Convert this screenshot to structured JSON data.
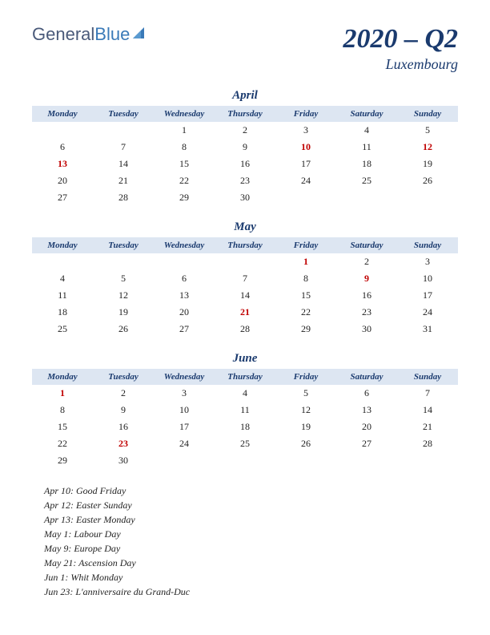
{
  "logo": {
    "part1": "General",
    "part2": "Blue"
  },
  "header": {
    "title": "2020 – Q2",
    "subtitle": "Luxembourg"
  },
  "day_headers": [
    "Monday",
    "Tuesday",
    "Wednesday",
    "Thursday",
    "Friday",
    "Saturday",
    "Sunday"
  ],
  "months": [
    {
      "name": "April",
      "weeks": [
        [
          null,
          null,
          {
            "d": 1
          },
          {
            "d": 2
          },
          {
            "d": 3
          },
          {
            "d": 4
          },
          {
            "d": 5
          }
        ],
        [
          {
            "d": 6
          },
          {
            "d": 7
          },
          {
            "d": 8
          },
          {
            "d": 9
          },
          {
            "d": 10,
            "h": true
          },
          {
            "d": 11
          },
          {
            "d": 12,
            "h": true
          }
        ],
        [
          {
            "d": 13,
            "h": true
          },
          {
            "d": 14
          },
          {
            "d": 15
          },
          {
            "d": 16
          },
          {
            "d": 17
          },
          {
            "d": 18
          },
          {
            "d": 19
          }
        ],
        [
          {
            "d": 20
          },
          {
            "d": 21
          },
          {
            "d": 22
          },
          {
            "d": 23
          },
          {
            "d": 24
          },
          {
            "d": 25
          },
          {
            "d": 26
          }
        ],
        [
          {
            "d": 27
          },
          {
            "d": 28
          },
          {
            "d": 29
          },
          {
            "d": 30
          },
          null,
          null,
          null
        ]
      ]
    },
    {
      "name": "May",
      "weeks": [
        [
          null,
          null,
          null,
          null,
          {
            "d": 1,
            "h": true
          },
          {
            "d": 2
          },
          {
            "d": 3
          }
        ],
        [
          {
            "d": 4
          },
          {
            "d": 5
          },
          {
            "d": 6
          },
          {
            "d": 7
          },
          {
            "d": 8
          },
          {
            "d": 9,
            "h": true
          },
          {
            "d": 10
          }
        ],
        [
          {
            "d": 11
          },
          {
            "d": 12
          },
          {
            "d": 13
          },
          {
            "d": 14
          },
          {
            "d": 15
          },
          {
            "d": 16
          },
          {
            "d": 17
          }
        ],
        [
          {
            "d": 18
          },
          {
            "d": 19
          },
          {
            "d": 20
          },
          {
            "d": 21,
            "h": true
          },
          {
            "d": 22
          },
          {
            "d": 23
          },
          {
            "d": 24
          }
        ],
        [
          {
            "d": 25
          },
          {
            "d": 26
          },
          {
            "d": 27
          },
          {
            "d": 28
          },
          {
            "d": 29
          },
          {
            "d": 30
          },
          {
            "d": 31
          }
        ]
      ]
    },
    {
      "name": "June",
      "weeks": [
        [
          {
            "d": 1,
            "h": true
          },
          {
            "d": 2
          },
          {
            "d": 3
          },
          {
            "d": 4
          },
          {
            "d": 5
          },
          {
            "d": 6
          },
          {
            "d": 7
          }
        ],
        [
          {
            "d": 8
          },
          {
            "d": 9
          },
          {
            "d": 10
          },
          {
            "d": 11
          },
          {
            "d": 12
          },
          {
            "d": 13
          },
          {
            "d": 14
          }
        ],
        [
          {
            "d": 15
          },
          {
            "d": 16
          },
          {
            "d": 17
          },
          {
            "d": 18
          },
          {
            "d": 19
          },
          {
            "d": 20
          },
          {
            "d": 21
          }
        ],
        [
          {
            "d": 22
          },
          {
            "d": 23,
            "h": true
          },
          {
            "d": 24
          },
          {
            "d": 25
          },
          {
            "d": 26
          },
          {
            "d": 27
          },
          {
            "d": 28
          }
        ],
        [
          {
            "d": 29
          },
          {
            "d": 30
          },
          null,
          null,
          null,
          null,
          null
        ]
      ]
    }
  ],
  "holidays": [
    "Apr 10: Good Friday",
    "Apr 12: Easter Sunday",
    "Apr 13: Easter Monday",
    "May 1: Labour Day",
    "May 9: Europe Day",
    "May 21: Ascension Day",
    "Jun 1: Whit Monday",
    "Jun 23: L'anniversaire du Grand-Duc"
  ],
  "colors": {
    "header_bg": "#dde6f2",
    "title_color": "#1a3a6e",
    "holiday_color": "#c00000",
    "text_color": "#222222",
    "logo_blue": "#3a7ab8",
    "logo_gray": "#4a5a7a"
  }
}
